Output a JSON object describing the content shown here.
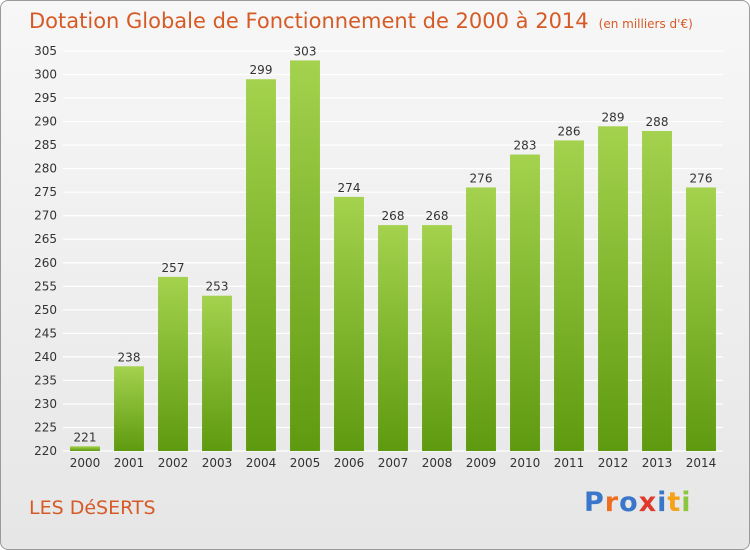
{
  "header": {
    "title": "Dotation Globale de Fonctionnement de 2000 à 2014",
    "unit": "(en milliers d'€)"
  },
  "footer": {
    "commune": "LES DéSERTS",
    "logo_text": "Proxiti"
  },
  "colors": {
    "title": "#d65a26",
    "bar_top": "#a4d24e",
    "bar_bottom": "#5e9a10",
    "grid": "#ffffff",
    "axis_text": "#333333",
    "logo_letters": [
      "#3a76c9",
      "#ee6f1f",
      "#3a76c9",
      "#e03a2f",
      "#3a76c9",
      "#f4a21a",
      "#8cc63f"
    ]
  },
  "chart_data": {
    "type": "bar",
    "categories": [
      "2000",
      "2001",
      "2002",
      "2003",
      "2004",
      "2005",
      "2006",
      "2007",
      "2008",
      "2009",
      "2010",
      "2011",
      "2012",
      "2013",
      "2014"
    ],
    "values": [
      221,
      238,
      257,
      253,
      299,
      303,
      274,
      268,
      268,
      276,
      283,
      286,
      289,
      288,
      276
    ],
    "ylim": [
      220,
      305
    ],
    "ytick_step": 5,
    "grid": true,
    "data_labels": true
  }
}
